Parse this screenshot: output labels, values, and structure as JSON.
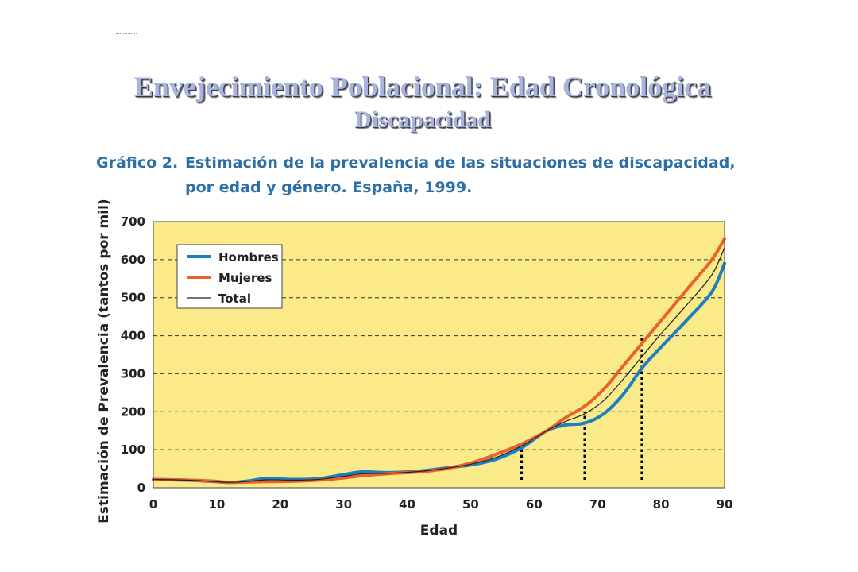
{
  "slide": {
    "title": "Envejecimiento Poblacional: Edad Cronológica",
    "subtitle": "Discapacidad"
  },
  "chart_heading": {
    "number": "Gráfico 2.",
    "line1": "Estimación de la prevalencia de las situaciones de discapacidad,",
    "line2": "por edad y género. España, 1999."
  },
  "colors": {
    "plot_background": "#fbea8a",
    "hombres": "#1d7fc1",
    "mujeres": "#e8622a",
    "total": "#222222",
    "title": "#a7b3e0",
    "heading": "#2c6fa6"
  },
  "chart_data": {
    "type": "line",
    "xlabel": "Edad",
    "ylabel": "Estimación de Prevalencia (tantos por mil)",
    "xlim": [
      0,
      90
    ],
    "ylim": [
      0,
      700
    ],
    "xticks": [
      0,
      10,
      20,
      30,
      40,
      50,
      60,
      70,
      80,
      90
    ],
    "yticks": [
      0,
      100,
      200,
      300,
      400,
      500,
      600,
      700
    ],
    "grid": "horizontal dashed",
    "legend_position": "top-left",
    "series": [
      {
        "name": "Hombres",
        "x": [
          0,
          5,
          9,
          12,
          15,
          18,
          22,
          26,
          30,
          33,
          37,
          42,
          46,
          50,
          54,
          58,
          62,
          65,
          68,
          71,
          74,
          77,
          80,
          84,
          88,
          90
        ],
        "y": [
          22,
          20,
          17,
          14,
          18,
          25,
          22,
          24,
          35,
          42,
          40,
          44,
          52,
          60,
          75,
          105,
          150,
          165,
          170,
          195,
          245,
          315,
          370,
          440,
          515,
          590
        ]
      },
      {
        "name": "Mujeres",
        "x": [
          0,
          5,
          9,
          12,
          15,
          18,
          22,
          26,
          30,
          33,
          37,
          42,
          46,
          50,
          54,
          58,
          62,
          65,
          68,
          71,
          74,
          77,
          80,
          84,
          88,
          90
        ],
        "y": [
          22,
          20,
          18,
          14,
          15,
          16,
          17,
          20,
          26,
          32,
          37,
          42,
          50,
          65,
          88,
          115,
          150,
          185,
          215,
          260,
          320,
          380,
          440,
          520,
          600,
          655
        ]
      },
      {
        "name": "Total",
        "x": [
          0,
          5,
          9,
          12,
          15,
          18,
          22,
          26,
          30,
          33,
          37,
          42,
          46,
          50,
          54,
          58,
          62,
          65,
          68,
          71,
          74,
          77,
          80,
          84,
          88,
          90
        ],
        "y": [
          22,
          20,
          17,
          14,
          17,
          21,
          20,
          22,
          30,
          37,
          38,
          43,
          51,
          62,
          80,
          110,
          150,
          175,
          195,
          230,
          285,
          345,
          405,
          480,
          560,
          632
        ]
      }
    ],
    "annotations": [
      {
        "type": "vertical-dotted-line",
        "x": 58,
        "y_from": 0,
        "y_to": 110
      },
      {
        "type": "vertical-dotted-line",
        "x": 68,
        "y_from": 0,
        "y_to": 200
      },
      {
        "type": "vertical-dotted-line",
        "x": 77,
        "y_from": 0,
        "y_to": 400
      }
    ]
  }
}
